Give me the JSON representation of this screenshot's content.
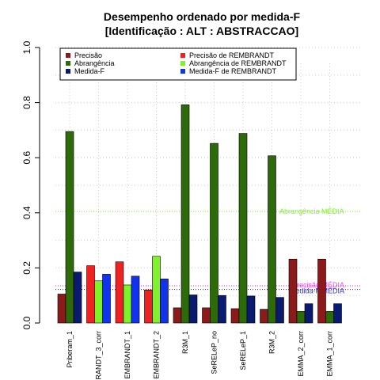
{
  "chart_data": {
    "type": "bar",
    "title": "Desempenho ordenado por medida-F",
    "subtitle": "[Identificação : ALT : ABSTRACCAO]",
    "categories": [
      "Priberam_1",
      "RANDT_3_corr",
      "EMBRANDT_1",
      "EMBRANDT_2",
      "R3M_1",
      "SeRELeP_no",
      "SeRELeP_1",
      "R3M_2",
      "EMMA_2_corr",
      "EMMA_1_corr"
    ],
    "ylim": [
      0,
      1.0
    ],
    "yticks": [
      "0.0",
      "0.2",
      "0.4",
      "0.6",
      "0.8",
      "1.0"
    ],
    "grid": true,
    "legend_position": "top",
    "series": [
      {
        "name": "Precisão",
        "values": [
          0.105,
          null,
          null,
          null,
          0.055,
          0.055,
          0.052,
          0.05,
          0.232,
          0.232
        ]
      },
      {
        "name": "Abrangência",
        "values": [
          0.695,
          null,
          null,
          null,
          0.792,
          0.652,
          0.688,
          0.607,
          0.042,
          0.042
        ]
      },
      {
        "name": "Medida-F",
        "values": [
          0.185,
          null,
          null,
          null,
          0.102,
          0.1,
          0.098,
          0.093,
          0.07,
          0.07
        ]
      },
      {
        "name": "Precisão  de  REMBRANDT",
        "values": [
          null,
          0.208,
          0.222,
          0.12,
          null,
          null,
          null,
          null,
          null,
          null
        ]
      },
      {
        "name": "Abrangência  de  REMBRANDT",
        "values": [
          null,
          0.153,
          0.138,
          0.242,
          null,
          null,
          null,
          null,
          null,
          null
        ]
      },
      {
        "name": "Medida-F  de  REMBRANDT",
        "values": [
          null,
          0.177,
          0.17,
          0.16,
          null,
          null,
          null,
          null,
          null,
          null
        ]
      }
    ],
    "reference_lines": [
      {
        "label": "Abrangência MÉDIA",
        "value": 0.405
      },
      {
        "label": "Precisão  MÉDIA",
        "value": 0.135
      },
      {
        "label": "Medida-F  MÉDIA",
        "value": 0.122
      }
    ]
  },
  "colors": {
    "precisao": "#8b1a1a",
    "abrangencia": "#2d6a0a",
    "medida_f": "#0a1a6e",
    "precisao_rembrandt": "#ee2222",
    "abrangencia_rembrandt": "#7ff22a",
    "medida_f_rembrandt": "#1133ee",
    "ref_abrangencia": "#7ff22a",
    "ref_precisao": "#ee44ee",
    "ref_medida_f": "#3333ee",
    "grid": "#cccccc"
  }
}
